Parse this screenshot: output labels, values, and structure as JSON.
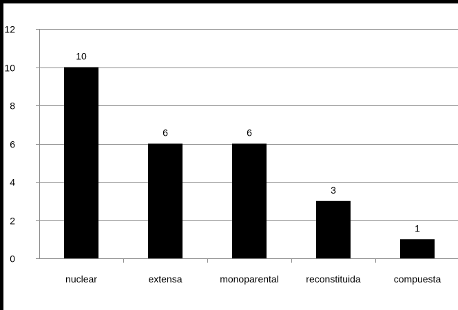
{
  "chart_data": {
    "type": "bar",
    "categories": [
      "nuclear",
      "extensa",
      "monoparental",
      "reconstituida",
      "compuesta"
    ],
    "values": [
      10,
      6,
      6,
      3,
      1
    ],
    "data_labels": [
      "10",
      "6",
      "6",
      "3",
      "1"
    ],
    "ylim": [
      0,
      12
    ],
    "yticks": [
      "0",
      "2",
      "4",
      "6",
      "8",
      "10",
      "12"
    ],
    "grid": true,
    "legend": "none",
    "colors": {
      "bar": "#000000",
      "grid": "#8c8c8c",
      "axis": "#8c8c8c",
      "frame": "#000000"
    }
  }
}
